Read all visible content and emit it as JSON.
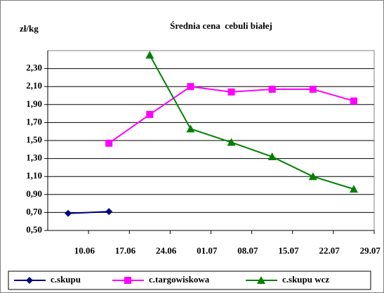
{
  "chart_data": {
    "type": "line",
    "title": "Średnia cena  cebuli białej",
    "y_label": "zł/kg",
    "categories": [
      "10.06",
      "17.06",
      "24.06",
      "01.07",
      "08.07",
      "15.07",
      "22.07",
      "29.07"
    ],
    "series": [
      {
        "name": "c.skupu",
        "color": "#000080",
        "marker": "diamond",
        "values": [
          0.69,
          0.71,
          null,
          null,
          null,
          null,
          null,
          null
        ]
      },
      {
        "name": "c.targowiskowa",
        "color": "#ff00ff",
        "marker": "square",
        "values": [
          null,
          1.47,
          1.79,
          2.1,
          2.04,
          2.07,
          2.07,
          1.94
        ]
      },
      {
        "name": "c.skupu wcz",
        "color": "#008000",
        "marker": "triangle",
        "values": [
          null,
          null,
          2.45,
          1.63,
          1.48,
          1.32,
          1.1,
          0.96
        ]
      }
    ],
    "ylim": [
      0.5,
      2.5
    ],
    "yticks": [
      {
        "value": 0.5,
        "label": "0,50"
      },
      {
        "value": 0.7,
        "label": "0,70"
      },
      {
        "value": 0.9,
        "label": "0,90"
      },
      {
        "value": 1.1,
        "label": "1,10"
      },
      {
        "value": 1.3,
        "label": "1,30"
      },
      {
        "value": 1.5,
        "label": "1,50"
      },
      {
        "value": 1.7,
        "label": "1,70"
      },
      {
        "value": 1.9,
        "label": "1,90"
      },
      {
        "value": 2.1,
        "label": "2,10"
      },
      {
        "value": 2.3,
        "label": "2,30"
      }
    ],
    "grid": true,
    "legend": "bottom"
  }
}
